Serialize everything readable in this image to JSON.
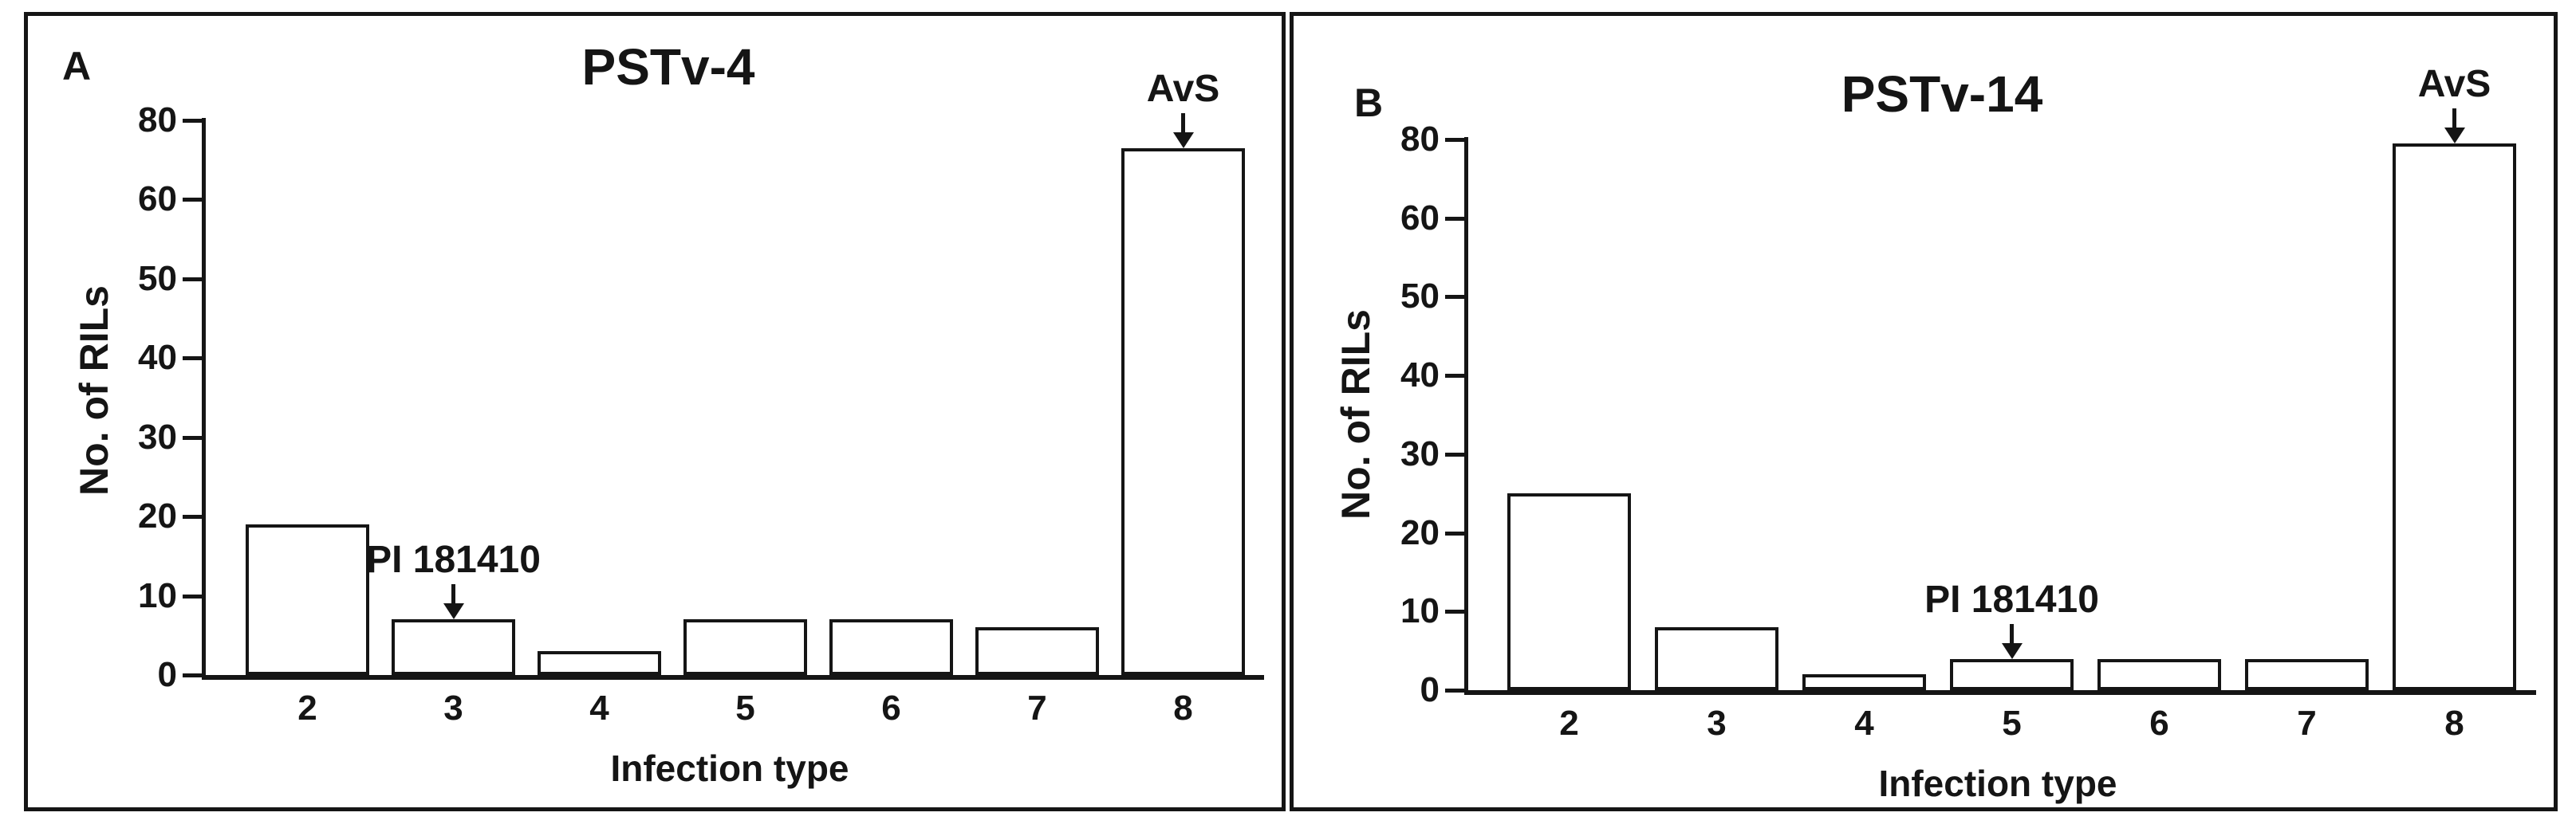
{
  "colors": {
    "ink": "#151515",
    "background": "#ffffff",
    "bar_fill": "#ffffff"
  },
  "chart_data": [
    {
      "type": "bar",
      "panel_letter": "A",
      "title": "PSTv-4",
      "xlabel": "Infection type",
      "ylabel": "No. of RILs",
      "categories": [
        "2",
        "3",
        "4",
        "5",
        "6",
        "7",
        "8"
      ],
      "values": [
        19,
        7,
        3,
        7,
        7,
        6,
        73
      ],
      "y_tick_labels": [
        "80",
        "60",
        "50",
        "40",
        "30",
        "20",
        "10",
        "0"
      ],
      "ylim": [
        0,
        80
      ],
      "grid": false,
      "legend": "none",
      "axis_note": "8 equally spaced ticks; labels jump from 60 to 80 (no 70 label)",
      "annotations": [
        {
          "label": "PI 181410",
          "category": "3"
        },
        {
          "label": "AvS",
          "category": "8"
        }
      ]
    },
    {
      "type": "bar",
      "panel_letter": "B",
      "title": "PSTv-14",
      "xlabel": "Infection type",
      "ylabel": "No. of RILs",
      "categories": [
        "2",
        "3",
        "4",
        "5",
        "6",
        "7",
        "8"
      ],
      "values": [
        25,
        8,
        2,
        4,
        4,
        4,
        79
      ],
      "y_tick_labels": [
        "80",
        "60",
        "50",
        "40",
        "30",
        "20",
        "10",
        "0"
      ],
      "ylim": [
        0,
        80
      ],
      "grid": false,
      "legend": "none",
      "axis_note": "8 equally spaced ticks; labels jump from 60 to 80 (no 70 label)",
      "annotations": [
        {
          "label": "PI 181410",
          "category": "5"
        },
        {
          "label": "AvS",
          "category": "8"
        }
      ]
    }
  ]
}
